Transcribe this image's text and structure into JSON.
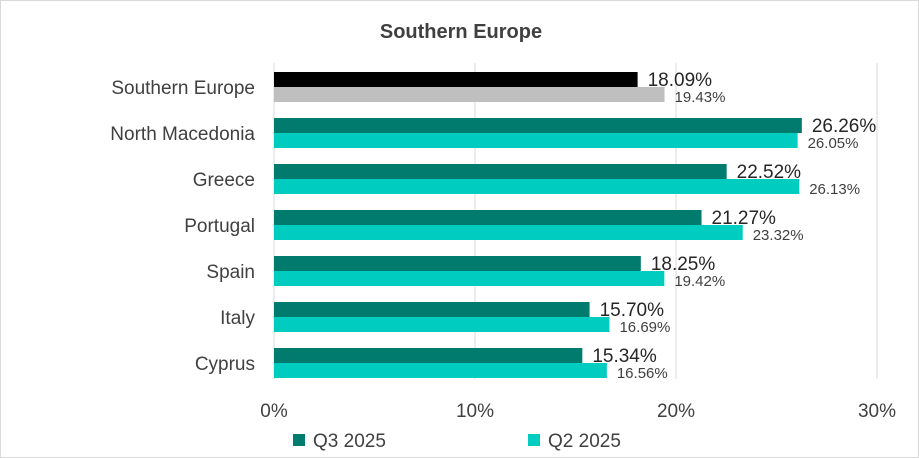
{
  "chart_data": {
    "type": "bar",
    "orientation": "horizontal",
    "title": "Southern Europe",
    "categories": [
      "Southern Europe",
      "North Macedonia",
      "Greece",
      "Portugal",
      "Spain",
      "Italy",
      "Cyprus"
    ],
    "series": [
      {
        "name": "Q3 2025",
        "color": "#007B6E",
        "values": [
          18.09,
          26.26,
          22.52,
          21.27,
          18.25,
          15.7,
          15.34
        ],
        "labels": [
          "18.09%",
          "26.26%",
          "22.52%",
          "21.27%",
          "18.25%",
          "15.70%",
          "15.34%"
        ]
      },
      {
        "name": "Q2 2025",
        "color": "#00CCC0",
        "values": [
          19.43,
          26.05,
          26.13,
          23.32,
          19.42,
          16.69,
          16.56
        ],
        "labels": [
          "19.43%",
          "26.05%",
          "26.13%",
          "23.32%",
          "19.42%",
          "16.69%",
          "16.56%"
        ]
      }
    ],
    "highlight": {
      "category": "Southern Europe",
      "colors": [
        "#000000",
        "#BFBFBF"
      ]
    },
    "xlim": [
      0,
      30
    ],
    "xticks": [
      0,
      10,
      20,
      30
    ],
    "xtick_labels": [
      "0%",
      "10%",
      "20%",
      "30%"
    ],
    "grid": "vertical",
    "gridColor": "#D9D9D9",
    "legend": "bottom",
    "xlabel": "",
    "ylabel": ""
  }
}
